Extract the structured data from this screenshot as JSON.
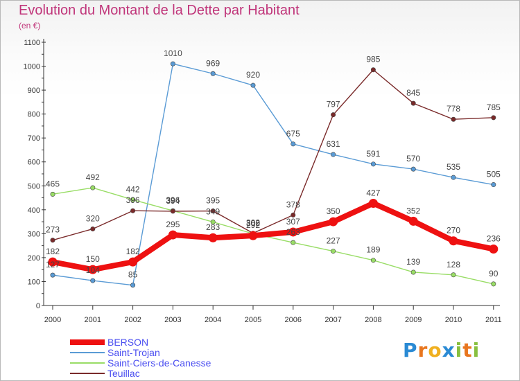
{
  "chart_data": {
    "type": "line",
    "title": "Evolution du Montant de la Dette par Habitant",
    "subtitle": "(en €)",
    "xlabel": "",
    "ylabel": "",
    "ylim": [
      0,
      1100
    ],
    "y_ticks": [
      0,
      100,
      200,
      300,
      400,
      500,
      600,
      700,
      800,
      900,
      1000,
      1100
    ],
    "categories": [
      "2000",
      "2001",
      "2002",
      "2003",
      "2004",
      "2005",
      "2006",
      "2007",
      "2008",
      "2009",
      "2010",
      "2011"
    ],
    "series": [
      {
        "name": "BERSON",
        "color": "#ee1111",
        "values": [
          182,
          150,
          182,
          295,
          283,
          292,
          307,
          350,
          427,
          352,
          270,
          236
        ]
      },
      {
        "name": "Saint-Trojan",
        "color": "#5a9bd5",
        "values": [
          127,
          104,
          85,
          1010,
          969,
          920,
          675,
          631,
          591,
          570,
          535,
          505
        ]
      },
      {
        "name": "Saint-Ciers-de-Canesse",
        "color": "#99dd66",
        "values": [
          465,
          492,
          442,
          396,
          349,
          300,
          263,
          227,
          189,
          139,
          128,
          90
        ]
      },
      {
        "name": "Teuillac",
        "color": "#7a2a2a",
        "values": [
          273,
          320,
          396,
          394,
          395,
          302,
          378,
          797,
          985,
          845,
          778,
          785
        ]
      }
    ],
    "legend_position": "bottom-left",
    "grid": false
  },
  "logo": {
    "text": "Proxiti",
    "letters": [
      "P",
      "r",
      "o",
      "x",
      "i",
      "t",
      "i"
    ],
    "colors": [
      "#2a8ad4",
      "#e8761e",
      "#f0b020",
      "#2a8ad4",
      "#88c040",
      "#e8761e",
      "#88c040"
    ]
  }
}
